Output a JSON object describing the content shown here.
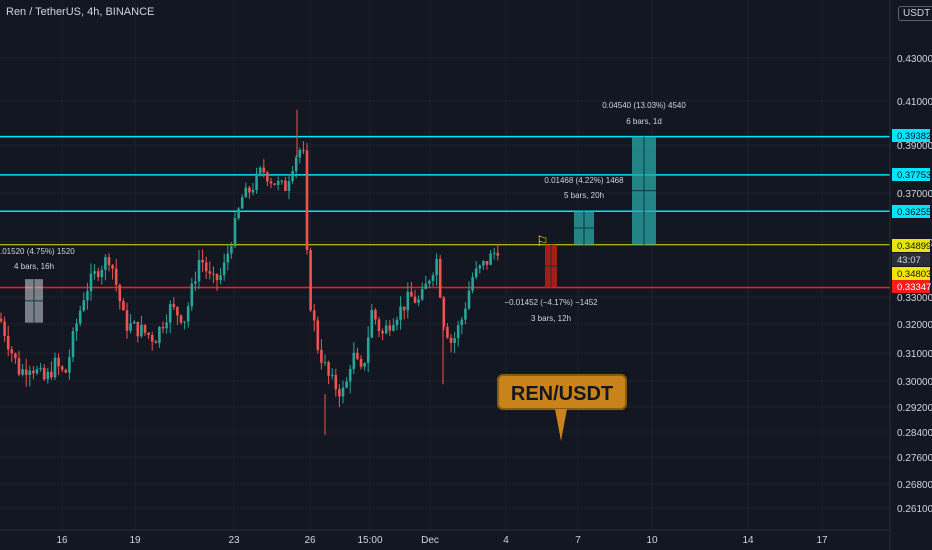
{
  "header": {
    "title": "Ren / TetherUS, 4h, BINANCE",
    "currency": "USDT"
  },
  "colors": {
    "bg": "#131722",
    "up": "#26a69a",
    "down": "#ef5350",
    "cyan": "#00e5ff",
    "yellow": "#e6e600",
    "red": "#ff1a1a",
    "text": "#d1d4dc",
    "callout": "#c8841a"
  },
  "chart_data": {
    "type": "candlestick",
    "ylim": [
      0.2575,
      0.4372
    ],
    "y_ticks": [
      "0.43000",
      "0.41000",
      "0.39000",
      "0.37000",
      "0.35000",
      "0.33000",
      "0.32000",
      "0.31000",
      "0.30000",
      "0.29200",
      "0.28400",
      "0.27600",
      "0.26800",
      "0.26100"
    ],
    "x_ticks": [
      "16",
      "19",
      "23",
      "26",
      "15:00",
      "Dec",
      "4",
      "7",
      "10",
      "14",
      "17"
    ],
    "price_labels": [
      {
        "value": "0.39382",
        "color": "cyan"
      },
      {
        "value": "0.37753",
        "color": "cyan"
      },
      {
        "value": "0.36255",
        "color": "cyan"
      },
      {
        "value": "0.34899",
        "color": "yellow"
      },
      {
        "value": "43:07",
        "color": "dark"
      },
      {
        "value": "0.34803",
        "color": "yellowbg"
      },
      {
        "value": "0.33347",
        "color": "red"
      }
    ],
    "h_lines": [
      {
        "value": 0.39382,
        "color": "cyan"
      },
      {
        "value": 0.37753,
        "color": "cyan"
      },
      {
        "value": 0.36255,
        "color": "cyan"
      },
      {
        "value": 0.34899,
        "color": "yellow"
      },
      {
        "value": 0.33347,
        "color": "red"
      }
    ],
    "measurements": [
      {
        "text1": "0.04540 (13.03%) 4540",
        "text2": "6 bars, 1d"
      },
      {
        "text1": "0.01468 (4.22%) 1468",
        "text2": "5 bars, 20h"
      },
      {
        "text1": "−0.01452 (−4.17%) −1452",
        "text2": "3 bars, 12h"
      },
      {
        "text1": ".01520 (4.75%) 1520",
        "text2": "4 bars, 16h"
      }
    ],
    "callout": "REN/USDT"
  }
}
